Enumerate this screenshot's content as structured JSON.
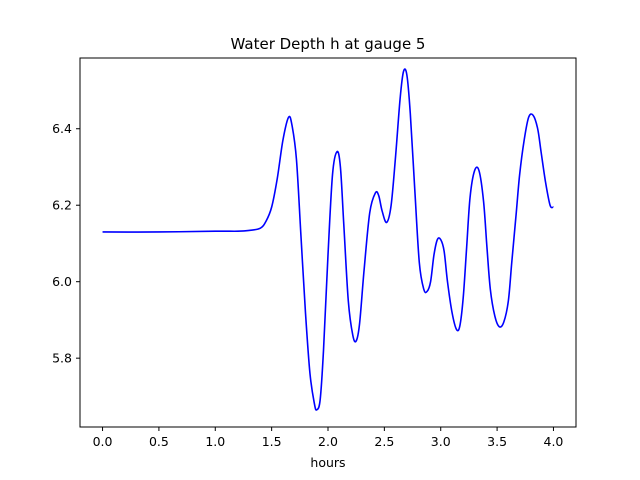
{
  "chart_data": {
    "type": "line",
    "title": "Water Depth h at gauge 5",
    "xlabel": "hours",
    "ylabel": "",
    "xlim": [
      -0.2,
      4.2
    ],
    "ylim": [
      5.62,
      6.585
    ],
    "xticks": [
      0.0,
      0.5,
      1.0,
      1.5,
      2.0,
      2.5,
      3.0,
      3.5,
      4.0
    ],
    "xtick_labels": [
      "0.0",
      "0.5",
      "1.0",
      "1.5",
      "2.0",
      "2.5",
      "3.0",
      "3.5",
      "4.0"
    ],
    "yticks": [
      5.8,
      6.0,
      6.2,
      6.4
    ],
    "ytick_labels": [
      "5.8",
      "6.0",
      "6.2",
      "6.4"
    ],
    "grid": false,
    "series": [
      {
        "color": "#0000ff",
        "x": [
          0.0,
          0.5,
          1.0,
          1.2,
          1.3,
          1.4,
          1.45,
          1.5,
          1.55,
          1.6,
          1.65,
          1.68,
          1.72,
          1.76,
          1.8,
          1.84,
          1.88,
          1.9,
          1.93,
          1.96,
          2.0,
          2.04,
          2.08,
          2.11,
          2.14,
          2.18,
          2.22,
          2.25,
          2.28,
          2.32,
          2.37,
          2.42,
          2.45,
          2.48,
          2.52,
          2.56,
          2.6,
          2.64,
          2.67,
          2.7,
          2.73,
          2.77,
          2.81,
          2.85,
          2.88,
          2.91,
          2.94,
          2.97,
          3.0,
          3.03,
          3.06,
          3.1,
          3.14,
          3.17,
          3.2,
          3.23,
          3.26,
          3.3,
          3.34,
          3.38,
          3.41,
          3.44,
          3.48,
          3.52,
          3.56,
          3.6,
          3.63,
          3.67,
          3.7,
          3.74,
          3.78,
          3.82,
          3.86,
          3.89,
          3.93,
          3.97,
          4.0
        ],
        "y": [
          6.13,
          6.13,
          6.132,
          6.132,
          6.134,
          6.14,
          6.158,
          6.195,
          6.27,
          6.37,
          6.43,
          6.41,
          6.32,
          6.12,
          5.92,
          5.76,
          5.68,
          5.665,
          5.69,
          5.82,
          6.07,
          6.28,
          6.34,
          6.3,
          6.15,
          5.95,
          5.86,
          5.845,
          5.89,
          6.03,
          6.18,
          6.232,
          6.225,
          6.185,
          6.155,
          6.2,
          6.33,
          6.48,
          6.55,
          6.54,
          6.44,
          6.24,
          6.05,
          5.98,
          5.975,
          6.0,
          6.07,
          6.11,
          6.11,
          6.08,
          6.0,
          5.92,
          5.875,
          5.885,
          5.96,
          6.09,
          6.22,
          6.29,
          6.29,
          6.21,
          6.09,
          5.98,
          5.91,
          5.882,
          5.895,
          5.95,
          6.05,
          6.18,
          6.28,
          6.37,
          6.43,
          6.435,
          6.4,
          6.34,
          6.26,
          6.2,
          6.195
        ]
      }
    ]
  }
}
